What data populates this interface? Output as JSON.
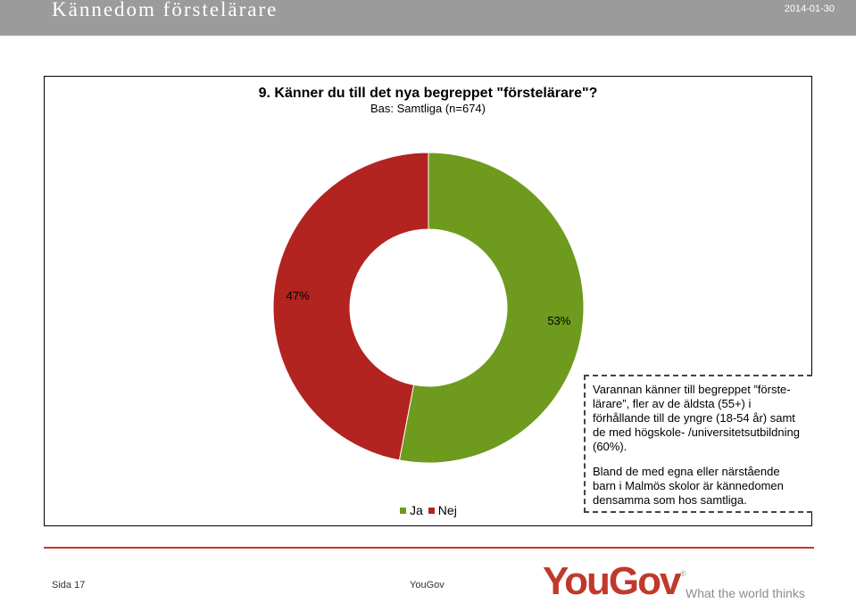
{
  "header": {
    "title": "Kännedom förstelärare",
    "date": "2014-01-30"
  },
  "chart_data": {
    "type": "pie",
    "title": "9. Känner du till det nya begreppet \"förstelärare\"?",
    "subtitle": "Bas: Samtliga (n=674)",
    "categories": [
      "Ja",
      "Nej"
    ],
    "values": [
      53,
      47
    ],
    "data_labels": [
      "53%",
      "47%"
    ],
    "colors": [
      "#6e9a1e",
      "#b3231f"
    ],
    "donut": true,
    "legend": {
      "placement": "bottom",
      "entries": [
        "Ja",
        "Nej"
      ]
    }
  },
  "note": {
    "paragraph1": "Varannan känner till begreppet ”förste-lärare”, fler av de äldsta (55+) i förhållande till de yngre (18-54 år) samt de med högskole- /universitetsutbildning (60%).",
    "paragraph2": "Bland de med egna eller närstående barn i Malmös skolor är kännedomen densamma som hos samtliga."
  },
  "footer": {
    "page": "Sida 17",
    "company": "YouGov",
    "logo_you": "You",
    "logo_gov": "Gov",
    "registered": "®",
    "tagline": "What the world thinks"
  }
}
